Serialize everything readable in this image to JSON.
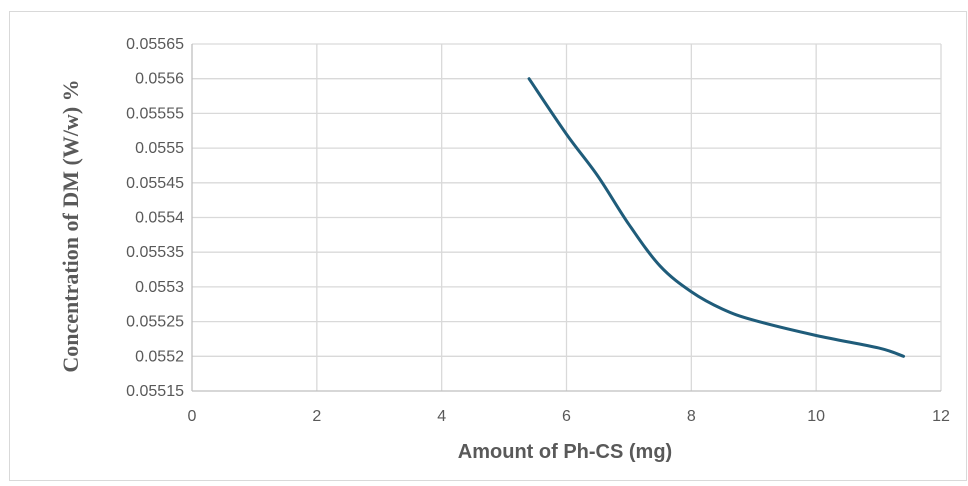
{
  "chart_data": {
    "type": "line",
    "title": "",
    "xlabel": "Amount of Ph-CS (mg)",
    "ylabel": "Concentration of DM (W/w) %",
    "xlim": [
      0,
      12
    ],
    "ylim": [
      0.05515,
      0.05565
    ],
    "x_ticks": [
      "0",
      "2",
      "4",
      "6",
      "8",
      "10",
      "12"
    ],
    "y_ticks": [
      "0.05515",
      "0.0552",
      "0.05525",
      "0.0553",
      "0.05535",
      "0.0554",
      "0.05545",
      "0.0555",
      "0.05555",
      "0.0556",
      "0.05565"
    ],
    "grid": true,
    "legend": "none",
    "line_color": "#1f5c7a",
    "series": [
      {
        "x": [
          5.4,
          6.0,
          6.5,
          7.0,
          7.5,
          8.0,
          8.5,
          9.0,
          10.0,
          11.0,
          11.4
        ],
        "values": [
          0.0556,
          0.05552,
          0.05546,
          0.05539,
          0.05533,
          0.055293,
          0.055268,
          0.055252,
          0.05523,
          0.055212,
          0.0552
        ]
      }
    ]
  }
}
